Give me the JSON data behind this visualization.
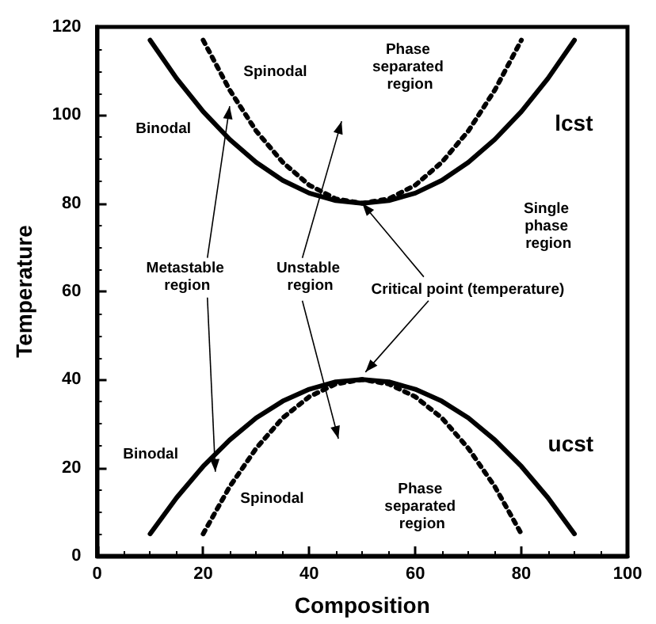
{
  "chart_data": {
    "type": "line",
    "xlabel": "Composition",
    "ylabel": "Temperature",
    "xlim": [
      0,
      100
    ],
    "ylim": [
      0,
      120
    ],
    "xticks": [
      0,
      20,
      40,
      60,
      80,
      100
    ],
    "yticks": [
      0,
      20,
      40,
      60,
      80,
      100,
      120
    ],
    "grid": false,
    "marker": "none",
    "series": [
      {
        "color": "#000000",
        "line_style": "solid",
        "x": [
          10,
          15,
          20,
          25,
          30,
          35,
          40,
          45,
          50,
          55,
          60,
          65,
          70,
          75,
          80,
          85,
          90
        ],
        "values": [
          117,
          108.3,
          100.8,
          94.5,
          89.3,
          85.2,
          82.3,
          80.6,
          80,
          80.6,
          82.3,
          85.2,
          89.3,
          94.5,
          100.8,
          108.3,
          117
        ]
      },
      {
        "color": "#000000",
        "line_style": "dotted",
        "x": [
          20,
          25,
          30,
          35,
          40,
          45,
          50,
          55,
          60,
          65,
          70,
          75,
          80
        ],
        "values": [
          117,
          105.7,
          96.4,
          89.3,
          84.1,
          81,
          80,
          81,
          84.1,
          89.3,
          96.4,
          105.7,
          117
        ]
      },
      {
        "color": "#000000",
        "line_style": "solid",
        "x": [
          10,
          15,
          20,
          25,
          30,
          35,
          40,
          45,
          50,
          55,
          60,
          65,
          70,
          75,
          80,
          85,
          90
        ],
        "values": [
          5,
          13.2,
          20.3,
          26.3,
          31.3,
          35.1,
          37.8,
          39.5,
          40,
          39.5,
          37.8,
          35.1,
          31.3,
          26.3,
          20.3,
          13.2,
          5
        ]
      },
      {
        "color": "#000000",
        "line_style": "dotted",
        "x": [
          20,
          25,
          30,
          35,
          40,
          45,
          50,
          55,
          60,
          65,
          70,
          75,
          80
        ],
        "values": [
          5,
          15.7,
          24.4,
          31.3,
          36.1,
          39,
          40,
          39,
          36.1,
          31.3,
          24.4,
          15.7,
          5
        ]
      }
    ],
    "annotations": [
      "Spinodal",
      "Phase separated region",
      "Binodal",
      "lcst",
      "Single phase region",
      {
        "text": "Metastable region",
        "x": 25,
        "y": 102
      },
      "Unstable region",
      {
        "text": "Critical point (temperature)",
        "x": 50,
        "y": 80
      },
      "ucst",
      "Binodal",
      "Spinodal",
      "Phase separated region"
    ]
  }
}
